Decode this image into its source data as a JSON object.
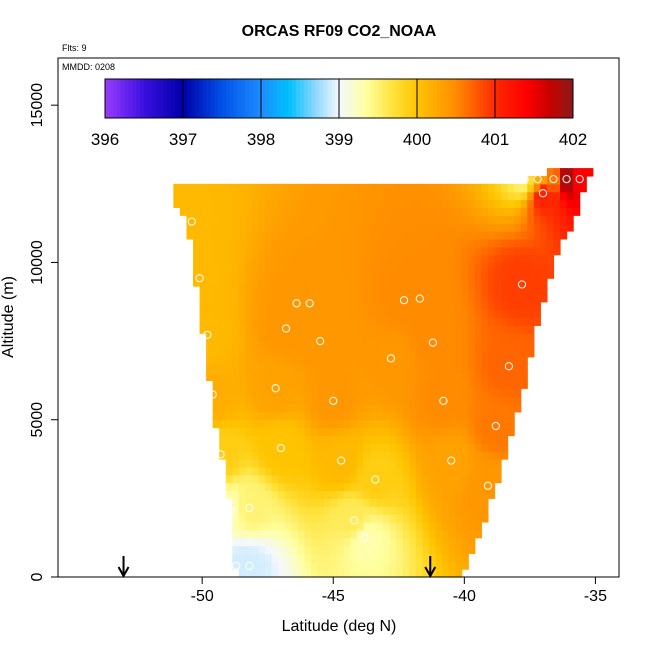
{
  "chart_data": {
    "type": "heatmap",
    "title": "ORCAS RF09 CO2_NOAA",
    "xlabel": "Latitude (deg N)",
    "ylabel": "Altitude (m)",
    "xlim": [
      -55.5,
      -34.1
    ],
    "ylim": [
      0,
      16500
    ],
    "x_ticks": [
      -50,
      -45,
      -40,
      -35
    ],
    "x_tick_labels": [
      "-50",
      "-45",
      "-40",
      "-35"
    ],
    "y_ticks": [
      0,
      5000,
      10000,
      15000
    ],
    "y_tick_labels": [
      "0",
      "5000",
      "10000",
      "15000"
    ],
    "annotations": {
      "flights": "Flts: 9",
      "date": "MMDD: 0208"
    },
    "colorbar": {
      "min": 396,
      "max": 402,
      "ticks": [
        396,
        397,
        398,
        399,
        400,
        401,
        402
      ],
      "tick_labels": [
        "396",
        "397",
        "398",
        "399",
        "400",
        "401",
        "402"
      ],
      "stops": [
        {
          "v": 396.0,
          "c": "#9a3cff"
        },
        {
          "v": 396.5,
          "c": "#3a10e0"
        },
        {
          "v": 397.0,
          "c": "#0000a8"
        },
        {
          "v": 397.5,
          "c": "#0050e8"
        },
        {
          "v": 398.0,
          "c": "#1e8cff"
        },
        {
          "v": 398.35,
          "c": "#00bfff"
        },
        {
          "v": 398.7,
          "c": "#8ed8ff"
        },
        {
          "v": 399.0,
          "c": "#f4f8ff"
        },
        {
          "v": 399.35,
          "c": "#ffffa0"
        },
        {
          "v": 399.7,
          "c": "#ffe23a"
        },
        {
          "v": 400.0,
          "c": "#ffc400"
        },
        {
          "v": 400.5,
          "c": "#ff8c00"
        },
        {
          "v": 401.0,
          "c": "#ff2a00"
        },
        {
          "v": 401.4,
          "c": "#ff0000"
        },
        {
          "v": 401.7,
          "c": "#c80000"
        },
        {
          "v": 402.0,
          "c": "#8b1a1a"
        }
      ]
    },
    "field": {
      "lat_start": -51.1,
      "lat_end": -35.2,
      "alt_top_by_lat": [
        [
          -51.1,
          12500
        ],
        [
          -37.6,
          12600
        ],
        [
          -36.7,
          12900
        ],
        [
          -35.2,
          12900
        ]
      ],
      "alt_bottom_by_lat": [
        [
          -51.1,
          12100
        ],
        [
          -50.5,
          11000
        ],
        [
          -50.2,
          9200
        ],
        [
          -49.9,
          7300
        ],
        [
          -49.6,
          5400
        ],
        [
          -49.2,
          3600
        ],
        [
          -48.9,
          2100
        ],
        [
          -48.7,
          0
        ],
        [
          -40.1,
          0
        ],
        [
          -39.8,
          700
        ],
        [
          -39.2,
          1900
        ],
        [
          -38.7,
          3100
        ],
        [
          -38.3,
          4300
        ],
        [
          -37.8,
          5700
        ],
        [
          -37.3,
          7700
        ],
        [
          -36.8,
          9400
        ],
        [
          -36.3,
          10600
        ],
        [
          -35.7,
          11500
        ],
        [
          -35.2,
          12900
        ]
      ]
    },
    "samples": [
      {
        "lat": -50.4,
        "alt": 11300,
        "co2": 400.1
      },
      {
        "lat": -50.1,
        "alt": 9500,
        "co2": 400.1
      },
      {
        "lat": -49.8,
        "alt": 7700,
        "co2": 400.1
      },
      {
        "lat": -49.6,
        "alt": 5800,
        "co2": 400.2
      },
      {
        "lat": -49.3,
        "alt": 3900,
        "co2": 399.9
      },
      {
        "lat": -48.9,
        "alt": 2100,
        "co2": 399.3
      },
      {
        "lat": -48.2,
        "alt": 2200,
        "co2": 399.5
      },
      {
        "lat": -48.7,
        "alt": 350,
        "co2": 398.9
      },
      {
        "lat": -48.2,
        "alt": 350,
        "co2": 398.9
      },
      {
        "lat": -47.2,
        "alt": 6000,
        "co2": 400.3
      },
      {
        "lat": -47.0,
        "alt": 4100,
        "co2": 400.0
      },
      {
        "lat": -46.8,
        "alt": 7900,
        "co2": 400.4
      },
      {
        "lat": -46.4,
        "alt": 8700,
        "co2": 400.4
      },
      {
        "lat": -45.9,
        "alt": 8700,
        "co2": 400.4
      },
      {
        "lat": -45.5,
        "alt": 7500,
        "co2": 400.4
      },
      {
        "lat": -45.0,
        "alt": 5600,
        "co2": 400.4
      },
      {
        "lat": -44.7,
        "alt": 3700,
        "co2": 400.1
      },
      {
        "lat": -44.2,
        "alt": 1800,
        "co2": 399.6
      },
      {
        "lat": -43.8,
        "alt": 1250,
        "co2": 399.3
      },
      {
        "lat": -43.4,
        "alt": 3100,
        "co2": 399.9
      },
      {
        "lat": -42.8,
        "alt": 6950,
        "co2": 400.4
      },
      {
        "lat": -42.3,
        "alt": 8800,
        "co2": 400.5
      },
      {
        "lat": -41.7,
        "alt": 8850,
        "co2": 400.5
      },
      {
        "lat": -41.2,
        "alt": 7450,
        "co2": 400.5
      },
      {
        "lat": -40.8,
        "alt": 5600,
        "co2": 400.5
      },
      {
        "lat": -40.5,
        "alt": 3700,
        "co2": 400.3
      },
      {
        "lat": -39.1,
        "alt": 2900,
        "co2": 400.4
      },
      {
        "lat": -38.8,
        "alt": 4800,
        "co2": 400.6
      },
      {
        "lat": -38.3,
        "alt": 6700,
        "co2": 400.7
      },
      {
        "lat": -37.8,
        "alt": 9300,
        "co2": 400.9
      },
      {
        "lat": -37.0,
        "alt": 12200,
        "co2": 401.1
      },
      {
        "lat": -37.7,
        "alt": 12650,
        "co2": 399.5
      },
      {
        "lat": -37.2,
        "alt": 12650,
        "co2": 400.2
      },
      {
        "lat": -36.6,
        "alt": 12650,
        "co2": 400.6
      },
      {
        "lat": -36.1,
        "alt": 12650,
        "co2": 401.9
      },
      {
        "lat": -35.6,
        "alt": 12650,
        "co2": 401.4
      }
    ],
    "arrows_at_lat": [
      -53.0,
      -41.3
    ]
  }
}
